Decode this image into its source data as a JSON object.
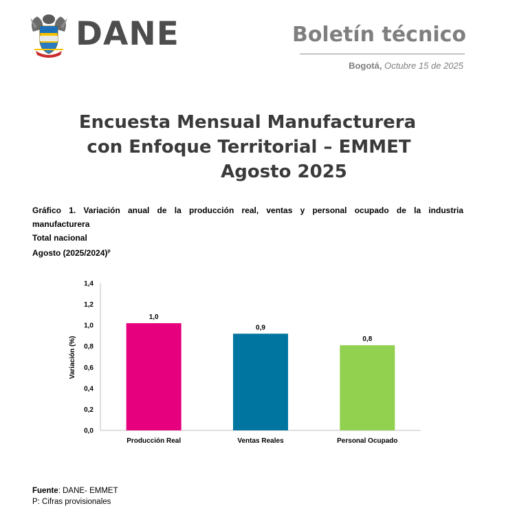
{
  "header": {
    "brand": "DANE",
    "doc_type": "Boletín técnico",
    "city": "Bogotá,",
    "date": "Octubre 15 de 2025"
  },
  "title": {
    "line1": "Encuesta Mensual Manufacturera",
    "line2": "con Enfoque Territorial – EMMET",
    "line3": "Agosto 2025"
  },
  "caption": {
    "line1": "Gráfico 1. Variación anual de la producción real, ventas y personal ocupado de la industria",
    "line2": "manufacturera",
    "line3": "Total nacional",
    "line4": "Agosto (2025/2024)",
    "line4_sup": "p"
  },
  "chart_data": {
    "type": "bar",
    "categories": [
      "Producción Real",
      "Ventas Reales",
      "Personal Ocupado"
    ],
    "values": [
      1.0,
      0.9,
      0.8
    ],
    "plotted_values": [
      1.02,
      0.92,
      0.81
    ],
    "data_labels": [
      "1,0",
      "0,9",
      "0,8"
    ],
    "colors": [
      "#e6007e",
      "#00759f",
      "#92d050"
    ],
    "ylabel": "Variación (%)",
    "ylim": [
      0,
      1.4
    ],
    "yticks": [
      "0,0",
      "0,2",
      "0,4",
      "0,6",
      "0,8",
      "1,0",
      "1,2",
      "1,4"
    ],
    "grid": false,
    "legend": "none"
  },
  "footer": {
    "source_label": "Fuente",
    "source_text": ": DANE- EMMET",
    "note": "P: Cifras provisionales"
  }
}
